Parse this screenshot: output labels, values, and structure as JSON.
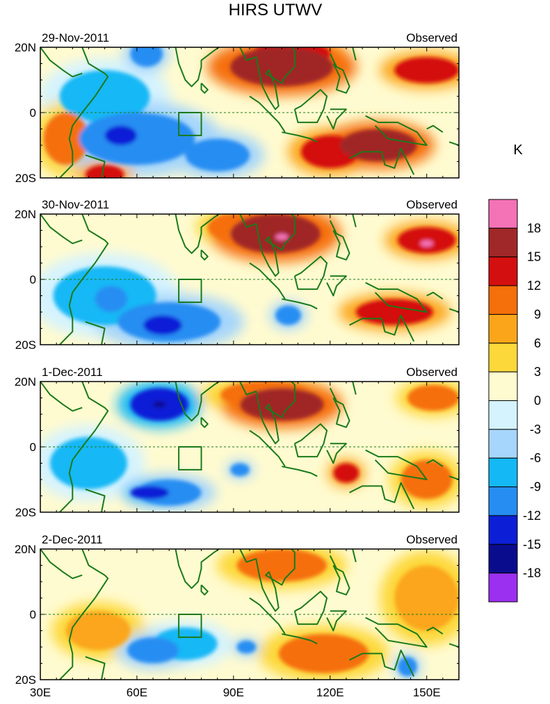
{
  "chart_data": {
    "type": "heatmap",
    "title": "HIRS UTWV",
    "units": "K",
    "x_ticks": [
      "30E",
      "60E",
      "90E",
      "120E",
      "150E"
    ],
    "x_tick_values": [
      30,
      60,
      90,
      120,
      150
    ],
    "xlim": [
      30,
      160
    ],
    "y_ticks": [
      "20N",
      "0",
      "20S"
    ],
    "y_tick_values": [
      20,
      0,
      -20
    ],
    "ylim": [
      -20,
      20
    ],
    "box_region": {
      "lon": [
        73,
        80
      ],
      "lat": [
        -7,
        0
      ]
    },
    "colorbar": {
      "labels": [
        "18",
        "15",
        "12",
        "9",
        "6",
        "3",
        "0",
        "-3",
        "-6",
        "-9",
        "-12",
        "-15",
        "-18"
      ],
      "colors": [
        "#f472b6",
        "#a02828",
        "#d40f0f",
        "#f56f0a",
        "#fba61a",
        "#fdd83a",
        "#fffbd0",
        "#d4f3ff",
        "#a6d6fb",
        "#14b8f5",
        "#268df2",
        "#0c1fd6",
        "#0a0c8e",
        "#9b30f0"
      ]
    },
    "panels": [
      {
        "date": "29-Nov-2011",
        "label": "Observed",
        "features": [
          {
            "lon": 105,
            "lat": 14,
            "value": 15,
            "rx": 16,
            "ry": 6
          },
          {
            "lon": 108,
            "lat": 18,
            "value": 12,
            "rx": 12,
            "ry": 4
          },
          {
            "lon": 150,
            "lat": 13,
            "value": 12,
            "rx": 10,
            "ry": 4
          },
          {
            "lon": 135,
            "lat": -10,
            "value": 15,
            "rx": 12,
            "ry": 5
          },
          {
            "lon": 120,
            "lat": -12,
            "value": 12,
            "rx": 9,
            "ry": 5
          },
          {
            "lon": 60,
            "lat": -8,
            "value": -12,
            "rx": 18,
            "ry": 8
          },
          {
            "lon": 85,
            "lat": -13,
            "value": -12,
            "rx": 10,
            "ry": 5
          },
          {
            "lon": 55,
            "lat": -7,
            "value": -15,
            "rx": 5,
            "ry": 3
          },
          {
            "lon": 63,
            "lat": 18,
            "value": -12,
            "rx": 5,
            "ry": 4
          },
          {
            "lon": 50,
            "lat": 5,
            "value": -9,
            "rx": 14,
            "ry": 8
          },
          {
            "lon": 38,
            "lat": -8,
            "value": 9,
            "rx": 7,
            "ry": 8
          },
          {
            "lon": 50,
            "lat": -19,
            "value": 12,
            "rx": 6,
            "ry": 3
          }
        ]
      },
      {
        "date": "30-Nov-2011",
        "label": "Observed",
        "features": [
          {
            "lon": 103,
            "lat": 14,
            "value": 15,
            "rx": 14,
            "ry": 6
          },
          {
            "lon": 105,
            "lat": 13,
            "value": 18,
            "rx": 2,
            "ry": 1
          },
          {
            "lon": 150,
            "lat": 12,
            "value": 12,
            "rx": 9,
            "ry": 4
          },
          {
            "lon": 150,
            "lat": 11,
            "value": 18,
            "rx": 2,
            "ry": 1
          },
          {
            "lon": 140,
            "lat": -10,
            "value": 12,
            "rx": 12,
            "ry": 4
          },
          {
            "lon": 90,
            "lat": 16,
            "value": 9,
            "rx": 8,
            "ry": 4
          },
          {
            "lon": 70,
            "lat": -13,
            "value": -12,
            "rx": 16,
            "ry": 6
          },
          {
            "lon": 68,
            "lat": -14,
            "value": -15,
            "rx": 6,
            "ry": 3
          },
          {
            "lon": 52,
            "lat": -6,
            "value": -12,
            "rx": 5,
            "ry": 4
          },
          {
            "lon": 107,
            "lat": -11,
            "value": -12,
            "rx": 4,
            "ry": 3
          },
          {
            "lon": 50,
            "lat": -5,
            "value": -9,
            "rx": 16,
            "ry": 9
          }
        ]
      },
      {
        "date": "1-Dec-2011",
        "label": "Observed",
        "features": [
          {
            "lon": 67,
            "lat": 13,
            "value": -15,
            "rx": 9,
            "ry": 5
          },
          {
            "lon": 67,
            "lat": 13,
            "value": -18,
            "rx": 2,
            "ry": 1
          },
          {
            "lon": 105,
            "lat": 13,
            "value": 15,
            "rx": 13,
            "ry": 5
          },
          {
            "lon": 100,
            "lat": 16,
            "value": 9,
            "rx": 14,
            "ry": 4
          },
          {
            "lon": 64,
            "lat": -14,
            "value": -15,
            "rx": 6,
            "ry": 2
          },
          {
            "lon": 70,
            "lat": -14,
            "value": -12,
            "rx": 10,
            "ry": 4
          },
          {
            "lon": 92,
            "lat": -7,
            "value": -12,
            "rx": 3,
            "ry": 2
          },
          {
            "lon": 150,
            "lat": -10,
            "value": 9,
            "rx": 8,
            "ry": 6
          },
          {
            "lon": 125,
            "lat": -8,
            "value": 12,
            "rx": 4,
            "ry": 3
          },
          {
            "lon": 152,
            "lat": 15,
            "value": 9,
            "rx": 8,
            "ry": 4
          },
          {
            "lon": 45,
            "lat": -5,
            "value": -9,
            "rx": 12,
            "ry": 8
          }
        ]
      },
      {
        "date": "2-Dec-2011",
        "label": "Observed",
        "features": [
          {
            "lon": 105,
            "lat": 15,
            "value": 9,
            "rx": 14,
            "ry": 5
          },
          {
            "lon": 118,
            "lat": -12,
            "value": 9,
            "rx": 14,
            "ry": 6
          },
          {
            "lon": 65,
            "lat": -11,
            "value": -12,
            "rx": 8,
            "ry": 4
          },
          {
            "lon": 94,
            "lat": -10,
            "value": -12,
            "rx": 3,
            "ry": 2
          },
          {
            "lon": 75,
            "lat": -9,
            "value": -9,
            "rx": 10,
            "ry": 5
          },
          {
            "lon": 144,
            "lat": -16,
            "value": -12,
            "rx": 3,
            "ry": 3
          },
          {
            "lon": 48,
            "lat": -5,
            "value": 6,
            "rx": 10,
            "ry": 6
          },
          {
            "lon": 150,
            "lat": 5,
            "value": 6,
            "rx": 10,
            "ry": 10
          }
        ]
      }
    ]
  }
}
